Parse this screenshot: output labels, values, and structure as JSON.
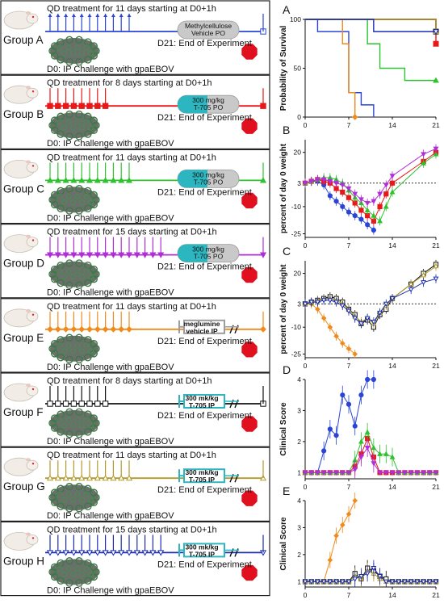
{
  "groups": [
    {
      "id": "A",
      "name": "Group A",
      "treatment": "QD treatment for 11 days starting at D0+1h",
      "drug": [
        "Methylcellulose",
        "Vehicle PO"
      ],
      "challenge": "D0: IP Challenge with gpaEBOV",
      "end": "D21: End of Experiment",
      "color": "#2a45d6",
      "marker": "none",
      "days": 11,
      "drug_style": "pill-grey"
    },
    {
      "id": "B",
      "name": "Group B",
      "treatment": "QD treatment for 8 days starting at D0+1h",
      "drug": [
        "300 mg/kg",
        "T-705 PO"
      ],
      "challenge": "D0: IP Challenge with gpaEBOV",
      "end": "D21: End of Experiment",
      "color": "#e81818",
      "marker": "square",
      "days": 8,
      "drug_style": "pill-teal"
    },
    {
      "id": "C",
      "name": "Group C",
      "treatment": "QD treatment for 11 days starting at D0+1h",
      "drug": [
        "300 mg/kg",
        "T-705 PO"
      ],
      "challenge": "D0: IP Challenge with gpaEBOV",
      "end": "D21: End of Experiment",
      "color": "#2ec22e",
      "marker": "triangle",
      "days": 11,
      "drug_style": "pill-teal"
    },
    {
      "id": "D",
      "name": "Group D",
      "treatment": "QD treatment for 15 days starting at D0+1h",
      "drug": [
        "300 mg/kg",
        "T-705 PO"
      ],
      "challenge": "D0: IP Challenge with gpaEBOV",
      "end": "D21: End of Experiment",
      "color": "#b02ed8",
      "marker": "tri-down",
      "days": 15,
      "drug_style": "pill-teal"
    },
    {
      "id": "E",
      "name": "Group E",
      "treatment": "QD treatment for 11 days starting at D0+1h",
      "drug": [
        "meglumine",
        "vehicle IP"
      ],
      "challenge": "D0: IP Challenge with gpaEBOV",
      "end": "D21: End of Experiment",
      "color": "#f08a1a",
      "marker": "diamond",
      "days": 11,
      "drug_style": "syringe-grey"
    },
    {
      "id": "F",
      "name": "Group F",
      "treatment": "QD treatment for 8 days starting at D0+1h",
      "drug": [
        "300 mk/kg",
        "T-705 IP"
      ],
      "challenge": "D0: IP Challenge with gpaEBOV",
      "end": "D21: End of Experiment",
      "color": "#111111",
      "marker": "square-open",
      "days": 8,
      "drug_style": "syringe-teal"
    },
    {
      "id": "G",
      "name": "Group G",
      "treatment": "QD treatment for 11 days starting at D0+1h",
      "drug": [
        "300 mk/kg",
        "T-705 IP"
      ],
      "challenge": "D0: IP Challenge with gpaEBOV",
      "end": "D21: End of Experiment",
      "color": "#b29a2a",
      "marker": "triangle-open",
      "days": 11,
      "drug_style": "syringe-teal"
    },
    {
      "id": "H",
      "name": "Group H",
      "treatment": "QD treatment for 15 days starting at D0+1h",
      "drug": [
        "300 mk/kg",
        "T-705 IP"
      ],
      "challenge": "D0: IP Challenge with gpaEBOV",
      "end": "D21: End of Experiment",
      "color": "#1a2db0",
      "marker": "tri-down-open",
      "days": 15,
      "drug_style": "syringe-teal"
    }
  ],
  "colors": {
    "teal": "#2bb6c0",
    "pill_grey": "#c9c9c9",
    "stop_red": "#e0101e"
  },
  "panels": [
    {
      "id": "A",
      "label": "A",
      "ylabel": "Probability of Survival",
      "ylim": [
        0,
        100
      ],
      "yticks": [
        "0",
        "50",
        "100"
      ]
    },
    {
      "id": "B",
      "label": "B",
      "ylabel": "percent of day 0 weight",
      "ylim": [
        -27,
        27
      ],
      "yticks": [
        "-25",
        "-10",
        "3",
        "20"
      ]
    },
    {
      "id": "C",
      "label": "C",
      "ylabel": "percent of day 0 weight",
      "ylim": [
        -27,
        27
      ],
      "yticks": [
        "-25",
        "-10",
        "3",
        "20"
      ]
    },
    {
      "id": "D",
      "label": "D",
      "ylabel": "Clinical Score",
      "ylim": [
        0.8,
        4
      ],
      "yticks": [
        "1",
        "2",
        "3",
        "4"
      ]
    },
    {
      "id": "E",
      "label": "E",
      "ylabel": "Clinical Score",
      "ylim": [
        0.8,
        4
      ],
      "yticks": [
        "1",
        "2",
        "3",
        "4"
      ]
    }
  ],
  "xticks": [
    "0",
    "7",
    "14",
    "21"
  ],
  "chart_data": [
    {
      "type": "line",
      "panel": "A",
      "xlim": [
        0,
        21
      ],
      "ylim": [
        0,
        100
      ],
      "series": [
        {
          "group": "A",
          "x": [
            0,
            2,
            7,
            7,
            9,
            10,
            11
          ],
          "y": [
            100,
            87.5,
            87.5,
            25,
            12.5,
            12.5,
            0
          ]
        },
        {
          "group": "B",
          "x": [
            0,
            21
          ],
          "y": [
            100,
            75
          ]
        },
        {
          "group": "C",
          "x": [
            0,
            9,
            10,
            12,
            16,
            21
          ],
          "y": [
            100,
            100,
            75,
            50,
            37.5,
            37.5
          ]
        },
        {
          "group": "E",
          "x": [
            0,
            6,
            7,
            8
          ],
          "y": [
            100,
            75,
            25,
            0
          ]
        },
        {
          "group": "F",
          "x": [
            0,
            21
          ],
          "y": [
            100,
            87.5
          ]
        },
        {
          "group": "G",
          "x": [
            0,
            21
          ],
          "y": [
            100,
            87.5
          ]
        },
        {
          "group": "H",
          "x": [
            0,
            8,
            11,
            21
          ],
          "y": [
            100,
            100,
            87.5,
            87.5
          ]
        }
      ]
    },
    {
      "type": "line",
      "panel": "B",
      "xlim": [
        0,
        21
      ],
      "ylim": [
        -27,
        27
      ],
      "series": [
        {
          "group": "A",
          "x": [
            0,
            1,
            2,
            3,
            4,
            5,
            6,
            7,
            8,
            9,
            10,
            11
          ],
          "y": [
            3,
            4,
            4,
            2,
            -4,
            -7,
            -10,
            -13,
            -15,
            -17,
            -20,
            -23
          ]
        },
        {
          "group": "B",
          "x": [
            0,
            1,
            2,
            3,
            4,
            5,
            6,
            7,
            8,
            9,
            10,
            11,
            12,
            13,
            14,
            19,
            21
          ],
          "y": [
            3,
            4,
            5,
            4,
            3,
            0,
            -2,
            -5,
            -8,
            -12,
            -15,
            -18,
            -10,
            -3,
            3,
            15,
            20
          ]
        },
        {
          "group": "C",
          "x": [
            0,
            1,
            2,
            3,
            4,
            5,
            6,
            7,
            8,
            9,
            10,
            11,
            12,
            13,
            14,
            19,
            21
          ],
          "y": [
            3,
            4,
            5,
            6,
            6,
            5,
            3,
            -1,
            -5,
            -8,
            -12,
            -15,
            -18,
            -10,
            -2,
            14,
            19
          ]
        },
        {
          "group": "D",
          "x": [
            0,
            1,
            2,
            3,
            4,
            5,
            6,
            7,
            8,
            9,
            10,
            11,
            12,
            13,
            14,
            19,
            21
          ],
          "y": [
            3,
            4,
            5,
            5,
            4,
            3,
            2,
            0,
            -3,
            -6,
            -8,
            -7,
            -3,
            2,
            7,
            19,
            22
          ]
        }
      ]
    },
    {
      "type": "line",
      "panel": "C",
      "xlim": [
        0,
        21
      ],
      "ylim": [
        -27,
        27
      ],
      "series": [
        {
          "group": "E",
          "x": [
            0,
            1,
            2,
            3,
            4,
            5,
            6,
            7,
            8
          ],
          "y": [
            3,
            3,
            0,
            -5,
            -10,
            -15,
            -19,
            -22,
            -25
          ]
        },
        {
          "group": "F",
          "x": [
            0,
            1,
            2,
            3,
            4,
            5,
            6,
            7,
            8,
            9,
            10,
            11,
            12,
            13,
            14,
            17,
            19,
            21
          ],
          "y": [
            3,
            4,
            5,
            6,
            7,
            6,
            4,
            0,
            -3,
            -8,
            -6,
            -10,
            -3,
            0,
            6,
            14,
            20,
            25
          ]
        },
        {
          "group": "G",
          "x": [
            0,
            1,
            2,
            3,
            4,
            5,
            6,
            7,
            8,
            9,
            10,
            11,
            12,
            13,
            14,
            17,
            19,
            21
          ],
          "y": [
            3,
            4,
            5,
            6,
            6,
            5,
            3,
            0,
            -4,
            -7,
            -5,
            -8,
            -2,
            2,
            6,
            14,
            19,
            24
          ]
        },
        {
          "group": "H",
          "x": [
            0,
            1,
            2,
            3,
            4,
            5,
            6,
            7,
            8,
            9,
            10,
            11,
            12,
            13,
            14,
            17,
            19,
            21
          ],
          "y": [
            3,
            4,
            4,
            5,
            5,
            4,
            2,
            -1,
            -5,
            -8,
            -5,
            -7,
            -2,
            3,
            6,
            11,
            15,
            17
          ]
        }
      ]
    },
    {
      "type": "line",
      "panel": "D",
      "xlim": [
        0,
        21
      ],
      "ylim": [
        0.8,
        4
      ],
      "series": [
        {
          "group": "A",
          "x": [
            0,
            1,
            2,
            3,
            4,
            5,
            6,
            7,
            8,
            9,
            10,
            11
          ],
          "y": [
            1,
            1,
            1,
            1.7,
            2.4,
            2.2,
            3.5,
            3.2,
            2.5,
            3.5,
            4,
            4
          ]
        },
        {
          "group": "B",
          "x": [
            0,
            1,
            2,
            3,
            4,
            5,
            6,
            7,
            8,
            9,
            10,
            11,
            12,
            13,
            14,
            15,
            16,
            17,
            18,
            19,
            20,
            21
          ],
          "y": [
            1,
            1,
            1,
            1,
            1,
            1,
            1,
            1,
            1.2,
            1.6,
            2.1,
            1.5,
            1,
            1,
            1,
            1,
            1,
            1,
            1,
            1,
            1,
            1
          ]
        },
        {
          "group": "C",
          "x": [
            0,
            1,
            2,
            3,
            4,
            5,
            6,
            7,
            8,
            9,
            10,
            11,
            12,
            13,
            14,
            15,
            16,
            17,
            18,
            19,
            20,
            21
          ],
          "y": [
            1,
            1,
            1,
            1,
            1,
            1,
            1,
            1,
            1.4,
            2.0,
            2.3,
            1.8,
            1.6,
            1.6,
            1.5,
            1,
            1,
            1,
            1,
            1,
            1,
            1
          ]
        },
        {
          "group": "D",
          "x": [
            0,
            1,
            2,
            3,
            4,
            5,
            6,
            7,
            8,
            9,
            10,
            11,
            12,
            13,
            14,
            15,
            16,
            17,
            18,
            19,
            20,
            21
          ],
          "y": [
            1,
            1,
            1,
            1,
            1,
            1,
            1,
            1,
            1.1,
            1.5,
            1.8,
            1.3,
            1,
            1,
            1,
            1,
            1,
            1,
            1,
            1,
            1,
            1
          ]
        }
      ]
    },
    {
      "type": "line",
      "panel": "E",
      "xlim": [
        0,
        21
      ],
      "ylim": [
        0.8,
        4
      ],
      "series": [
        {
          "group": "E",
          "x": [
            0,
            1,
            2,
            3,
            4,
            5,
            6,
            7,
            8
          ],
          "y": [
            1,
            1,
            1,
            1,
            1.8,
            2.7,
            3.1,
            3.5,
            4
          ]
        },
        {
          "group": "F",
          "x": [
            0,
            1,
            2,
            3,
            4,
            5,
            6,
            7,
            8,
            9,
            10,
            11,
            12,
            13,
            14,
            15,
            16,
            17,
            18,
            19,
            20,
            21
          ],
          "y": [
            1,
            1,
            1,
            1,
            1,
            1,
            1,
            1,
            1.3,
            1.1,
            1.5,
            1.4,
            1.2,
            1.1,
            1,
            1,
            1,
            1,
            1,
            1,
            1,
            1
          ]
        },
        {
          "group": "G",
          "x": [
            0,
            1,
            2,
            3,
            4,
            5,
            6,
            7,
            8,
            9,
            10,
            11,
            12,
            13,
            14,
            15,
            16,
            17,
            18,
            19,
            20,
            21
          ],
          "y": [
            1,
            1,
            1,
            1,
            1,
            1,
            1,
            1,
            1.2,
            1.1,
            1.4,
            1.3,
            1.1,
            1,
            1,
            1,
            1,
            1,
            1,
            1,
            1,
            1
          ]
        },
        {
          "group": "H",
          "x": [
            0,
            1,
            2,
            3,
            4,
            5,
            6,
            7,
            8,
            9,
            10,
            11,
            12,
            13,
            14,
            15,
            16,
            17,
            18,
            19,
            20,
            21
          ],
          "y": [
            1,
            1,
            1,
            1,
            1,
            1,
            1,
            1,
            1.1,
            1.2,
            1.3,
            1.5,
            1.2,
            1,
            1,
            1,
            1,
            1,
            1,
            1,
            1,
            1
          ]
        }
      ]
    }
  ]
}
